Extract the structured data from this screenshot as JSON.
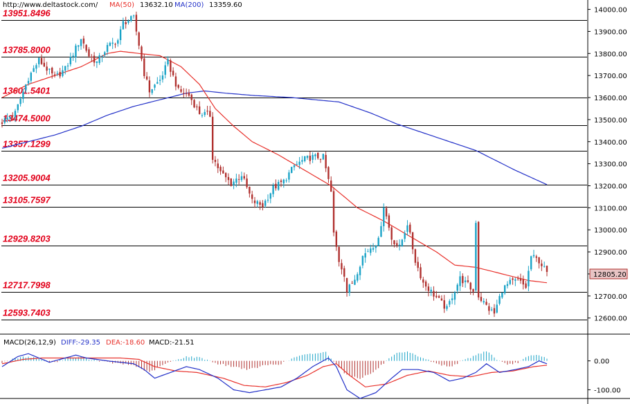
{
  "header": {
    "site": "http://www.deltastock.com/",
    "ma50_label": "MA(50)",
    "ma50_value": "13632.10",
    "ma200_label": "MA(200)",
    "ma200_value": "13359.60"
  },
  "macd_header": {
    "name": "MACD(26,12,9)",
    "diff": "DIFF:-29.35",
    "dea": "DEA:-18.60",
    "macd": "MACD:-21.51"
  },
  "colors": {
    "up": "#1aa3c7",
    "down": "#b0302e",
    "ma50": "#e8302a",
    "ma200": "#2230c8",
    "level_text": "#e2001a",
    "diff": "#2230c8",
    "dea": "#e8302a"
  },
  "chart_data": [
    {
      "type": "candlestick",
      "ylim": [
        12530,
        14030
      ],
      "yticks": [
        "14000.00",
        "13900.00",
        "13800.00",
        "13700.00",
        "13600.00",
        "13500.00",
        "13400.00",
        "13300.00",
        "13200.00",
        "13100.00",
        "13000.00",
        "12900.00",
        "12800.00",
        "12700.00",
        "12600.00"
      ],
      "last_price": "12805.20",
      "levels": [
        "13951.8496",
        "13785.8000",
        "13601.5401",
        "13474.5000",
        "13357.1299",
        "13205.9004",
        "13105.7597",
        "12929.8203",
        "12717.7998",
        "12593.7403"
      ],
      "close_path": [
        [
          0,
          13490
        ],
        [
          5,
          13530
        ],
        [
          10,
          13690
        ],
        [
          14,
          13770
        ],
        [
          20,
          13690
        ],
        [
          24,
          13730
        ],
        [
          27,
          13800
        ],
        [
          30,
          13870
        ],
        [
          33,
          13790
        ],
        [
          36,
          13760
        ],
        [
          40,
          13830
        ],
        [
          44,
          13860
        ],
        [
          46,
          13940
        ],
        [
          50,
          13960
        ],
        [
          52,
          13840
        ],
        [
          54,
          13710
        ],
        [
          56,
          13630
        ],
        [
          60,
          13680
        ],
        [
          63,
          13760
        ],
        [
          67,
          13630
        ],
        [
          71,
          13610
        ],
        [
          75,
          13530
        ],
        [
          79,
          13520
        ],
        [
          80,
          13330
        ],
        [
          83,
          13260
        ],
        [
          87,
          13210
        ],
        [
          91,
          13250
        ],
        [
          95,
          13130
        ],
        [
          99,
          13110
        ],
        [
          103,
          13190
        ],
        [
          107,
          13220
        ],
        [
          111,
          13290
        ],
        [
          115,
          13320
        ],
        [
          118,
          13330
        ],
        [
          122,
          13330
        ],
        [
          125,
          13170
        ],
        [
          126,
          12980
        ],
        [
          128,
          12860
        ],
        [
          130,
          12800
        ],
        [
          131,
          12720
        ],
        [
          134,
          12780
        ],
        [
          137,
          12880
        ],
        [
          140,
          12920
        ],
        [
          143,
          12950
        ],
        [
          145,
          13110
        ],
        [
          148,
          12960
        ],
        [
          151,
          12920
        ],
        [
          154,
          13030
        ],
        [
          157,
          12860
        ],
        [
          160,
          12760
        ],
        [
          163,
          12720
        ],
        [
          166,
          12680
        ],
        [
          169,
          12640
        ],
        [
          171,
          12700
        ],
        [
          174,
          12780
        ],
        [
          177,
          12750
        ],
        [
          179,
          12720
        ],
        [
          180,
          13040
        ],
        [
          181,
          12700
        ],
        [
          185,
          12640
        ],
        [
          187,
          12620
        ],
        [
          190,
          12730
        ],
        [
          193,
          12760
        ],
        [
          196,
          12770
        ],
        [
          199,
          12740
        ],
        [
          201,
          12880
        ],
        [
          204,
          12860
        ],
        [
          207,
          12805
        ]
      ],
      "ma50_path": [
        [
          0,
          13600
        ],
        [
          10,
          13660
        ],
        [
          20,
          13700
        ],
        [
          30,
          13740
        ],
        [
          40,
          13800
        ],
        [
          45,
          13810
        ],
        [
          52,
          13800
        ],
        [
          60,
          13790
        ],
        [
          68,
          13740
        ],
        [
          75,
          13660
        ],
        [
          81,
          13550
        ],
        [
          88,
          13470
        ],
        [
          95,
          13400
        ],
        [
          105,
          13340
        ],
        [
          115,
          13270
        ],
        [
          125,
          13200
        ],
        [
          135,
          13100
        ],
        [
          145,
          13040
        ],
        [
          155,
          12970
        ],
        [
          165,
          12900
        ],
        [
          172,
          12840
        ],
        [
          180,
          12830
        ],
        [
          190,
          12800
        ],
        [
          200,
          12770
        ],
        [
          207,
          12760
        ]
      ],
      "ma200_path": [
        [
          0,
          13370
        ],
        [
          10,
          13400
        ],
        [
          20,
          13430
        ],
        [
          30,
          13470
        ],
        [
          40,
          13520
        ],
        [
          50,
          13560
        ],
        [
          60,
          13590
        ],
        [
          70,
          13620
        ],
        [
          77,
          13630
        ],
        [
          85,
          13620
        ],
        [
          95,
          13610
        ],
        [
          110,
          13600
        ],
        [
          128,
          13580
        ],
        [
          140,
          13530
        ],
        [
          150,
          13480
        ],
        [
          165,
          13420
        ],
        [
          180,
          13360
        ],
        [
          195,
          13270
        ],
        [
          207,
          13205
        ]
      ]
    },
    {
      "type": "macd",
      "ylim": [
        -130,
        90
      ],
      "yticks": [
        "0.00",
        "-100.00"
      ],
      "diff_path": [
        [
          0,
          -20
        ],
        [
          6,
          15
        ],
        [
          10,
          25
        ],
        [
          14,
          10
        ],
        [
          18,
          -5
        ],
        [
          22,
          5
        ],
        [
          28,
          20
        ],
        [
          32,
          10
        ],
        [
          40,
          0
        ],
        [
          50,
          -10
        ],
        [
          54,
          -30
        ],
        [
          58,
          -60
        ],
        [
          64,
          -40
        ],
        [
          70,
          -20
        ],
        [
          75,
          -30
        ],
        [
          82,
          -60
        ],
        [
          88,
          -100
        ],
        [
          94,
          -110
        ],
        [
          100,
          -100
        ],
        [
          106,
          -90
        ],
        [
          112,
          -60
        ],
        [
          118,
          -20
        ],
        [
          124,
          10
        ],
        [
          127,
          -20
        ],
        [
          131,
          -100
        ],
        [
          136,
          -130
        ],
        [
          142,
          -110
        ],
        [
          148,
          -60
        ],
        [
          152,
          -30
        ],
        [
          158,
          -30
        ],
        [
          164,
          -40
        ],
        [
          170,
          -70
        ],
        [
          175,
          -60
        ],
        [
          180,
          -40
        ],
        [
          184,
          -10
        ],
        [
          189,
          -40
        ],
        [
          195,
          -30
        ],
        [
          200,
          -20
        ],
        [
          204,
          0
        ],
        [
          207,
          -10
        ]
      ],
      "dea_path": [
        [
          0,
          -10
        ],
        [
          8,
          5
        ],
        [
          15,
          10
        ],
        [
          25,
          10
        ],
        [
          35,
          10
        ],
        [
          45,
          10
        ],
        [
          52,
          5
        ],
        [
          58,
          -20
        ],
        [
          66,
          -35
        ],
        [
          74,
          -40
        ],
        [
          84,
          -60
        ],
        [
          92,
          -85
        ],
        [
          100,
          -90
        ],
        [
          108,
          -75
        ],
        [
          116,
          -50
        ],
        [
          122,
          -20
        ],
        [
          127,
          -10
        ],
        [
          132,
          -50
        ],
        [
          138,
          -90
        ],
        [
          146,
          -80
        ],
        [
          154,
          -50
        ],
        [
          162,
          -35
        ],
        [
          170,
          -50
        ],
        [
          178,
          -55
        ],
        [
          186,
          -40
        ],
        [
          194,
          -35
        ],
        [
          202,
          -20
        ],
        [
          207,
          -15
        ]
      ],
      "hist_path": [
        [
          0,
          -5
        ],
        [
          6,
          10
        ],
        [
          10,
          15
        ],
        [
          15,
          5
        ],
        [
          20,
          -5
        ],
        [
          25,
          10
        ],
        [
          30,
          12
        ],
        [
          40,
          -5
        ],
        [
          50,
          -15
        ],
        [
          56,
          -40
        ],
        [
          62,
          -10
        ],
        [
          70,
          15
        ],
        [
          76,
          10
        ],
        [
          82,
          -10
        ],
        [
          88,
          -20
        ],
        [
          94,
          -30
        ],
        [
          100,
          -15
        ],
        [
          106,
          -10
        ],
        [
          112,
          15
        ],
        [
          118,
          25
        ],
        [
          123,
          30
        ],
        [
          127,
          -10
        ],
        [
          131,
          -50
        ],
        [
          136,
          -60
        ],
        [
          141,
          -40
        ],
        [
          146,
          0
        ],
        [
          150,
          25
        ],
        [
          154,
          30
        ],
        [
          157,
          20
        ],
        [
          160,
          10
        ],
        [
          165,
          -10
        ],
        [
          170,
          -20
        ],
        [
          175,
          0
        ],
        [
          180,
          20
        ],
        [
          184,
          35
        ],
        [
          188,
          5
        ],
        [
          192,
          -15
        ],
        [
          196,
          -5
        ],
        [
          200,
          15
        ],
        [
          203,
          20
        ],
        [
          207,
          10
        ]
      ]
    }
  ]
}
